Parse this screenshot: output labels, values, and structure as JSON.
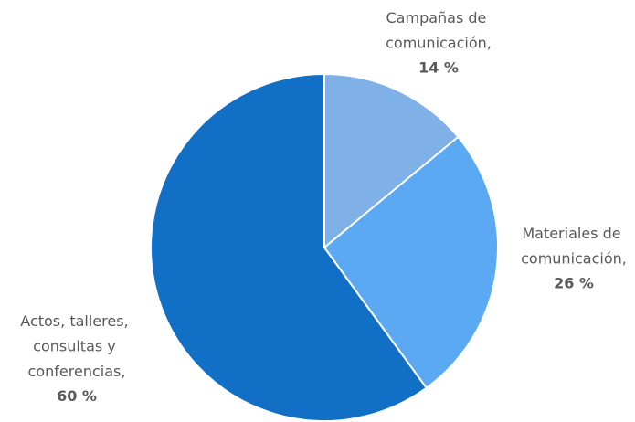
{
  "chart_data": {
    "type": "pie",
    "categories": [
      "Campañas de comunicación,",
      "Materiales de comunicación,",
      "Actos, talleres, consultas y conferencias,"
    ],
    "values": [
      14,
      26,
      60
    ],
    "value_labels": [
      "14 %",
      "26 %",
      "60 %"
    ],
    "colors": [
      "#7fb0e6",
      "#5aa9f2",
      "#1170c6"
    ]
  }
}
